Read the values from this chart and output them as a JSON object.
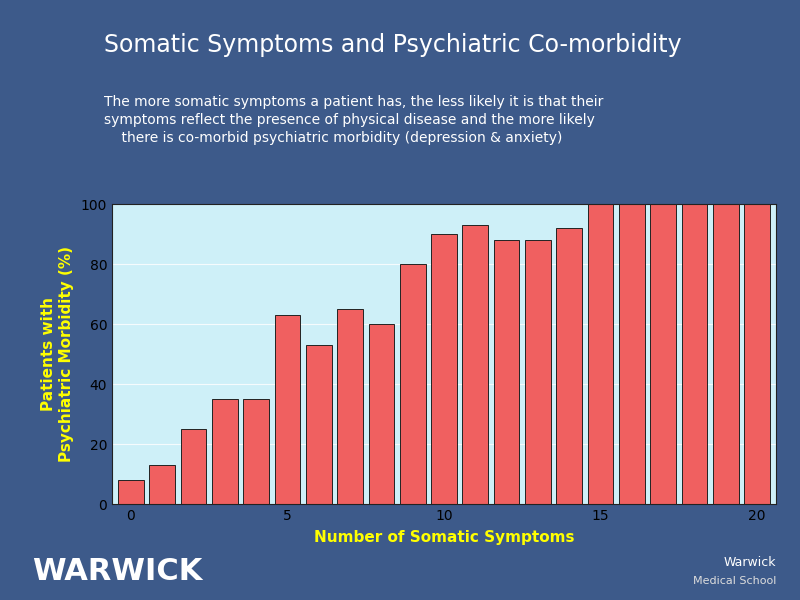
{
  "title": "Somatic Symptoms and Psychiatric Co-morbidity",
  "subtitle_line1": "The more somatic symptoms a patient has, the less likely it is that their",
  "subtitle_line2": "symptoms reflect the presence of physical disease and the more likely",
  "subtitle_line3": "    there is co-morbid psychiatric morbidity (depression & anxiety)",
  "xlabel": "Number of Somatic Symptoms",
  "ylabel": "Patients with\nPsychiatric Morbidity (%)",
  "bar_values": [
    8,
    13,
    25,
    35,
    35,
    63,
    53,
    65,
    60,
    80,
    90,
    93,
    88,
    88,
    92,
    100,
    100,
    100,
    100,
    100,
    100
  ],
  "bar_x": [
    0,
    1,
    2,
    3,
    4,
    5,
    6,
    7,
    8,
    9,
    10,
    11,
    12,
    13,
    14,
    15,
    16,
    17,
    18,
    19,
    20
  ],
  "bar_color": "#f06060",
  "bar_edge_color": "#222222",
  "background_color": "#3d5a8a",
  "plot_bg_color": "#cef0f8",
  "title_color": "#ffffff",
  "subtitle_color": "#ffffff",
  "ylabel_color": "#ffff00",
  "xlabel_color": "#ffff00",
  "tick_label_color": "#000000",
  "ylim": [
    0,
    100
  ],
  "yticks": [
    0,
    20,
    40,
    60,
    80,
    100
  ],
  "xticks": [
    0,
    5,
    10,
    15,
    20
  ],
  "title_fontsize": 17,
  "subtitle_fontsize": 10,
  "axis_label_fontsize": 11,
  "tick_fontsize": 10,
  "footer_bg_color": "#2a4070",
  "warwick_color": "#ffffff",
  "warwick_school_color": "#dddddd"
}
